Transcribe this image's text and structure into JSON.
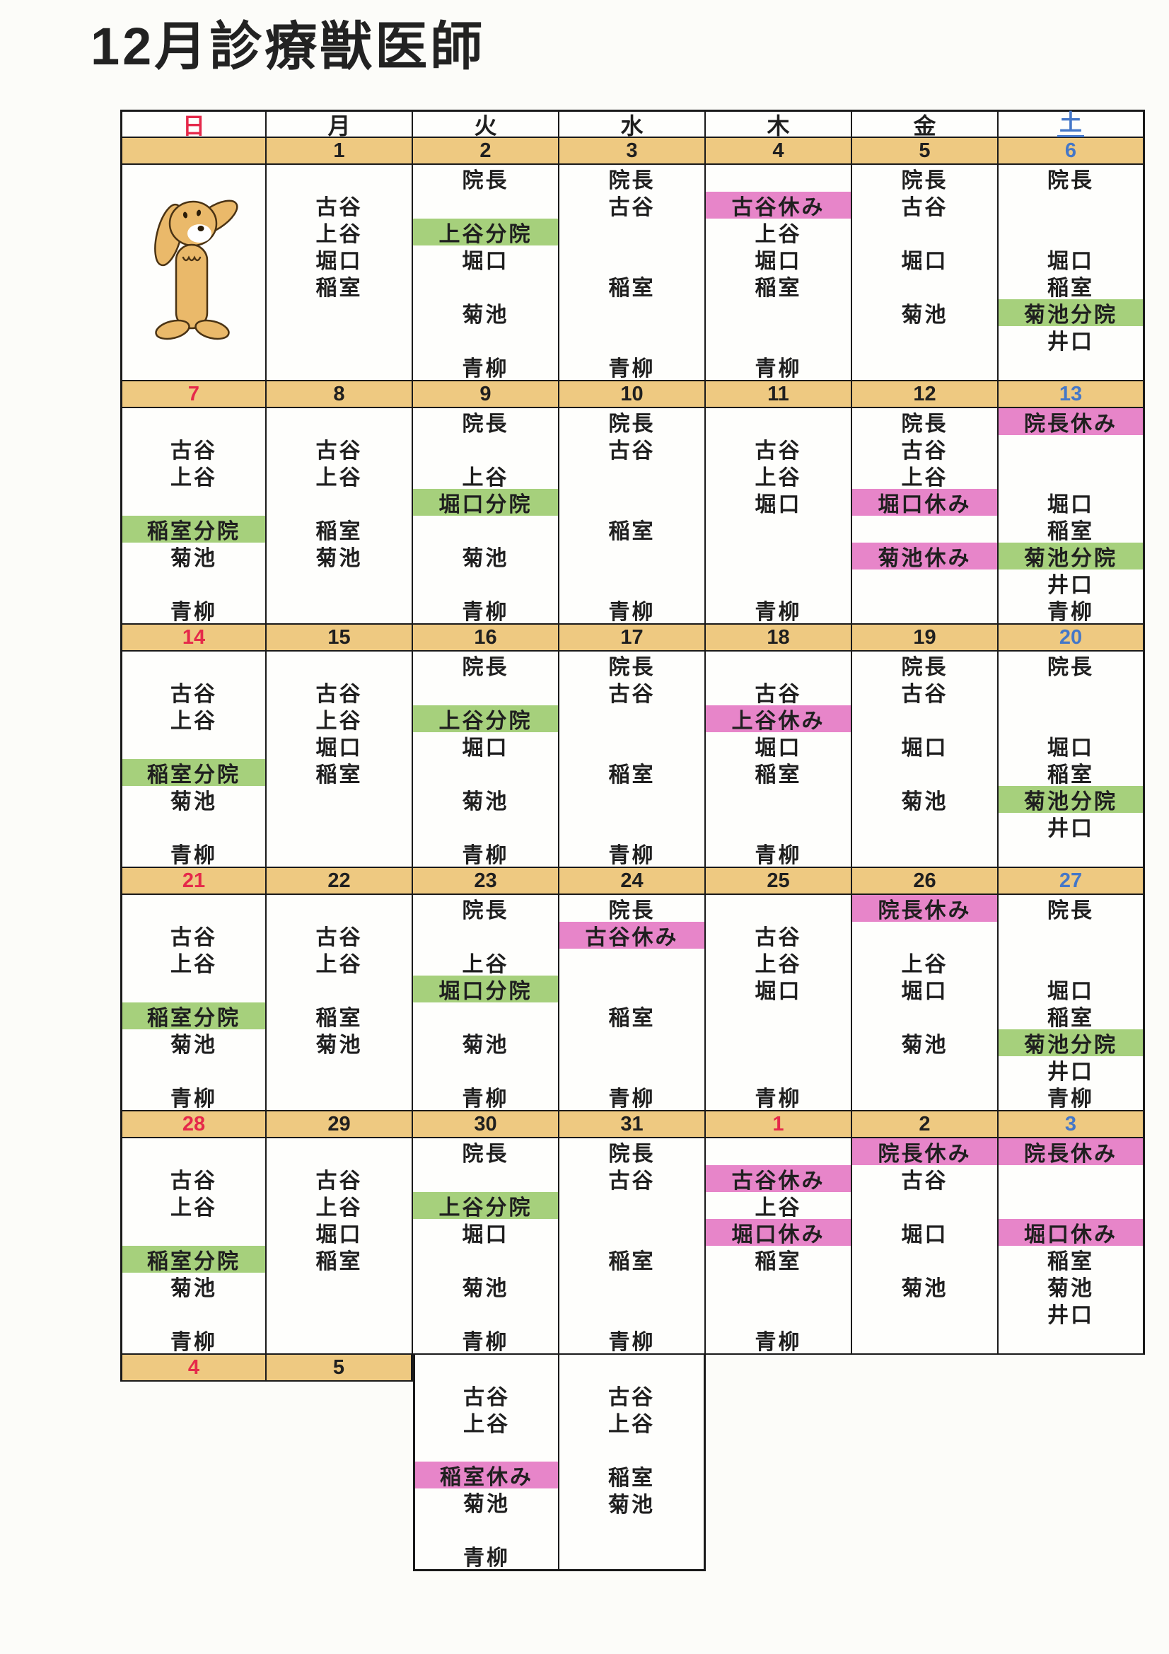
{
  "title": "12月診療獣医師",
  "colors": {
    "date_band": "#eec981",
    "branch_green": "#a6d07c",
    "holiday_pink": "#e785c9",
    "sunday_red": "#e5294a",
    "saturday_blue": "#4477c8",
    "ink": "#1f1f1f",
    "paper": "#fcfcf9"
  },
  "weekday_header": [
    {
      "label": "日",
      "color": "red"
    },
    {
      "label": "月",
      "color": "ink"
    },
    {
      "label": "火",
      "color": "ink"
    },
    {
      "label": "水",
      "color": "ink"
    },
    {
      "label": "木",
      "color": "ink"
    },
    {
      "label": "金",
      "color": "ink"
    },
    {
      "label": "土",
      "color": "blue",
      "underline": true
    }
  ],
  "roster_row_order": [
    "院長",
    "古谷",
    "上谷",
    "堀口",
    "稲室",
    "菊池",
    "井口",
    "青柳"
  ],
  "weeks": [
    {
      "dates": [
        {
          "n": ""
        },
        {
          "n": "1"
        },
        {
          "n": "2"
        },
        {
          "n": "3"
        },
        {
          "n": "4"
        },
        {
          "n": "5"
        },
        {
          "n": "6",
          "c": "blue"
        }
      ],
      "cells": [
        {
          "dog": true,
          "entries": []
        },
        {
          "entries": [
            {
              "line": 2,
              "text": "古谷"
            },
            {
              "line": 3,
              "text": "上谷"
            },
            {
              "line": 4,
              "text": "堀口"
            },
            {
              "line": 5,
              "text": "稲室"
            }
          ]
        },
        {
          "entries": [
            {
              "line": 1,
              "text": "院長"
            },
            {
              "line": 3,
              "text": "上谷分院",
              "hl": "green"
            },
            {
              "line": 4,
              "text": "堀口"
            },
            {
              "line": 6,
              "text": "菊池"
            },
            {
              "line": 8,
              "text": "青柳"
            }
          ]
        },
        {
          "entries": [
            {
              "line": 1,
              "text": "院長"
            },
            {
              "line": 2,
              "text": "古谷"
            },
            {
              "line": 5,
              "text": "稲室"
            },
            {
              "line": 8,
              "text": "青柳"
            }
          ]
        },
        {
          "entries": [
            {
              "line": 2,
              "text": "古谷休み",
              "hl": "pink"
            },
            {
              "line": 3,
              "text": "上谷"
            },
            {
              "line": 4,
              "text": "堀口"
            },
            {
              "line": 5,
              "text": "稲室"
            },
            {
              "line": 8,
              "text": "青柳"
            }
          ]
        },
        {
          "entries": [
            {
              "line": 1,
              "text": "院長"
            },
            {
              "line": 2,
              "text": "古谷"
            },
            {
              "line": 4,
              "text": "堀口"
            },
            {
              "line": 6,
              "text": "菊池"
            }
          ]
        },
        {
          "entries": [
            {
              "line": 1,
              "text": "院長"
            },
            {
              "line": 4,
              "text": "堀口"
            },
            {
              "line": 5,
              "text": "稲室"
            },
            {
              "line": 6,
              "text": "菊池分院",
              "hl": "green"
            },
            {
              "line": 7,
              "text": "井口"
            }
          ]
        }
      ]
    },
    {
      "dates": [
        {
          "n": "7",
          "c": "red"
        },
        {
          "n": "8"
        },
        {
          "n": "9"
        },
        {
          "n": "10"
        },
        {
          "n": "11"
        },
        {
          "n": "12"
        },
        {
          "n": "13",
          "c": "blue"
        }
      ],
      "cells": [
        {
          "entries": [
            {
              "line": 2,
              "text": "古谷"
            },
            {
              "line": 3,
              "text": "上谷"
            },
            {
              "line": 5,
              "text": "稲室分院",
              "hl": "green"
            },
            {
              "line": 6,
              "text": "菊池"
            },
            {
              "line": 8,
              "text": "青柳"
            }
          ]
        },
        {
          "entries": [
            {
              "line": 2,
              "text": "古谷"
            },
            {
              "line": 3,
              "text": "上谷"
            },
            {
              "line": 5,
              "text": "稲室"
            },
            {
              "line": 6,
              "text": "菊池"
            }
          ]
        },
        {
          "entries": [
            {
              "line": 1,
              "text": "院長"
            },
            {
              "line": 3,
              "text": "上谷"
            },
            {
              "line": 4,
              "text": "堀口分院",
              "hl": "green"
            },
            {
              "line": 6,
              "text": "菊池"
            },
            {
              "line": 8,
              "text": "青柳"
            }
          ]
        },
        {
          "entries": [
            {
              "line": 1,
              "text": "院長"
            },
            {
              "line": 2,
              "text": "古谷"
            },
            {
              "line": 5,
              "text": "稲室"
            },
            {
              "line": 8,
              "text": "青柳"
            }
          ]
        },
        {
          "entries": [
            {
              "line": 2,
              "text": "古谷"
            },
            {
              "line": 3,
              "text": "上谷"
            },
            {
              "line": 4,
              "text": "堀口"
            },
            {
              "line": 8,
              "text": "青柳"
            }
          ]
        },
        {
          "entries": [
            {
              "line": 1,
              "text": "院長"
            },
            {
              "line": 2,
              "text": "古谷"
            },
            {
              "line": 3,
              "text": "上谷"
            },
            {
              "line": 4,
              "text": "堀口休み",
              "hl": "pink"
            },
            {
              "line": 6,
              "text": "菊池休み",
              "hl": "pink"
            }
          ]
        },
        {
          "entries": [
            {
              "line": 1,
              "text": "院長休み",
              "hl": "pink"
            },
            {
              "line": 4,
              "text": "堀口"
            },
            {
              "line": 5,
              "text": "稲室"
            },
            {
              "line": 6,
              "text": "菊池分院",
              "hl": "green"
            },
            {
              "line": 7,
              "text": "井口"
            },
            {
              "line": 8,
              "text": "青柳"
            }
          ]
        }
      ]
    },
    {
      "dates": [
        {
          "n": "14",
          "c": "red"
        },
        {
          "n": "15"
        },
        {
          "n": "16"
        },
        {
          "n": "17"
        },
        {
          "n": "18"
        },
        {
          "n": "19"
        },
        {
          "n": "20",
          "c": "blue"
        }
      ],
      "cells": [
        {
          "entries": [
            {
              "line": 2,
              "text": "古谷"
            },
            {
              "line": 3,
              "text": "上谷"
            },
            {
              "line": 5,
              "text": "稲室分院",
              "hl": "green"
            },
            {
              "line": 6,
              "text": "菊池"
            },
            {
              "line": 8,
              "text": "青柳"
            }
          ]
        },
        {
          "entries": [
            {
              "line": 2,
              "text": "古谷"
            },
            {
              "line": 3,
              "text": "上谷"
            },
            {
              "line": 4,
              "text": "堀口"
            },
            {
              "line": 5,
              "text": "稲室"
            }
          ]
        },
        {
          "entries": [
            {
              "line": 1,
              "text": "院長"
            },
            {
              "line": 3,
              "text": "上谷分院",
              "hl": "green"
            },
            {
              "line": 4,
              "text": "堀口"
            },
            {
              "line": 6,
              "text": "菊池"
            },
            {
              "line": 8,
              "text": "青柳"
            }
          ]
        },
        {
          "entries": [
            {
              "line": 1,
              "text": "院長"
            },
            {
              "line": 2,
              "text": "古谷"
            },
            {
              "line": 5,
              "text": "稲室"
            },
            {
              "line": 8,
              "text": "青柳"
            }
          ]
        },
        {
          "entries": [
            {
              "line": 2,
              "text": "古谷"
            },
            {
              "line": 3,
              "text": "上谷休み",
              "hl": "pink"
            },
            {
              "line": 4,
              "text": "堀口"
            },
            {
              "line": 5,
              "text": "稲室"
            },
            {
              "line": 8,
              "text": "青柳"
            }
          ]
        },
        {
          "entries": [
            {
              "line": 1,
              "text": "院長"
            },
            {
              "line": 2,
              "text": "古谷"
            },
            {
              "line": 4,
              "text": "堀口"
            },
            {
              "line": 6,
              "text": "菊池"
            }
          ]
        },
        {
          "entries": [
            {
              "line": 1,
              "text": "院長"
            },
            {
              "line": 4,
              "text": "堀口"
            },
            {
              "line": 5,
              "text": "稲室"
            },
            {
              "line": 6,
              "text": "菊池分院",
              "hl": "green"
            },
            {
              "line": 7,
              "text": "井口"
            }
          ]
        }
      ]
    },
    {
      "dates": [
        {
          "n": "21",
          "c": "red"
        },
        {
          "n": "22"
        },
        {
          "n": "23"
        },
        {
          "n": "24"
        },
        {
          "n": "25"
        },
        {
          "n": "26"
        },
        {
          "n": "27",
          "c": "blue"
        }
      ],
      "cells": [
        {
          "entries": [
            {
              "line": 2,
              "text": "古谷"
            },
            {
              "line": 3,
              "text": "上谷"
            },
            {
              "line": 5,
              "text": "稲室分院",
              "hl": "green"
            },
            {
              "line": 6,
              "text": "菊池"
            },
            {
              "line": 8,
              "text": "青柳"
            }
          ]
        },
        {
          "entries": [
            {
              "line": 2,
              "text": "古谷"
            },
            {
              "line": 3,
              "text": "上谷"
            },
            {
              "line": 5,
              "text": "稲室"
            },
            {
              "line": 6,
              "text": "菊池"
            }
          ]
        },
        {
          "entries": [
            {
              "line": 1,
              "text": "院長"
            },
            {
              "line": 3,
              "text": "上谷"
            },
            {
              "line": 4,
              "text": "堀口分院",
              "hl": "green"
            },
            {
              "line": 6,
              "text": "菊池"
            },
            {
              "line": 8,
              "text": "青柳"
            }
          ]
        },
        {
          "entries": [
            {
              "line": 1,
              "text": "院長"
            },
            {
              "line": 2,
              "text": "古谷休み",
              "hl": "pink"
            },
            {
              "line": 5,
              "text": "稲室"
            },
            {
              "line": 8,
              "text": "青柳"
            }
          ]
        },
        {
          "entries": [
            {
              "line": 2,
              "text": "古谷"
            },
            {
              "line": 3,
              "text": "上谷"
            },
            {
              "line": 4,
              "text": "堀口"
            },
            {
              "line": 8,
              "text": "青柳"
            }
          ]
        },
        {
          "entries": [
            {
              "line": 1,
              "text": "院長休み",
              "hl": "pink"
            },
            {
              "line": 3,
              "text": "上谷"
            },
            {
              "line": 4,
              "text": "堀口"
            },
            {
              "line": 6,
              "text": "菊池"
            }
          ]
        },
        {
          "entries": [
            {
              "line": 1,
              "text": "院長"
            },
            {
              "line": 4,
              "text": "堀口"
            },
            {
              "line": 5,
              "text": "稲室"
            },
            {
              "line": 6,
              "text": "菊池分院",
              "hl": "green"
            },
            {
              "line": 7,
              "text": "井口"
            },
            {
              "line": 8,
              "text": "青柳"
            }
          ]
        }
      ]
    },
    {
      "dates": [
        {
          "n": "28",
          "c": "red"
        },
        {
          "n": "29"
        },
        {
          "n": "30"
        },
        {
          "n": "31"
        },
        {
          "n": "1",
          "c": "red"
        },
        {
          "n": "2"
        },
        {
          "n": "3",
          "c": "blue"
        }
      ],
      "cells": [
        {
          "entries": [
            {
              "line": 2,
              "text": "古谷"
            },
            {
              "line": 3,
              "text": "上谷"
            },
            {
              "line": 5,
              "text": "稲室分院",
              "hl": "green"
            },
            {
              "line": 6,
              "text": "菊池"
            },
            {
              "line": 8,
              "text": "青柳"
            }
          ]
        },
        {
          "entries": [
            {
              "line": 2,
              "text": "古谷"
            },
            {
              "line": 3,
              "text": "上谷"
            },
            {
              "line": 4,
              "text": "堀口"
            },
            {
              "line": 5,
              "text": "稲室"
            }
          ]
        },
        {
          "entries": [
            {
              "line": 1,
              "text": "院長"
            },
            {
              "line": 3,
              "text": "上谷分院",
              "hl": "green"
            },
            {
              "line": 4,
              "text": "堀口"
            },
            {
              "line": 6,
              "text": "菊池"
            },
            {
              "line": 8,
              "text": "青柳"
            }
          ]
        },
        {
          "entries": [
            {
              "line": 1,
              "text": "院長"
            },
            {
              "line": 2,
              "text": "古谷"
            },
            {
              "line": 5,
              "text": "稲室"
            },
            {
              "line": 8,
              "text": "青柳"
            }
          ]
        },
        {
          "entries": [
            {
              "line": 2,
              "text": "古谷休み",
              "hl": "pink"
            },
            {
              "line": 3,
              "text": "上谷"
            },
            {
              "line": 4,
              "text": "堀口休み",
              "hl": "pink"
            },
            {
              "line": 5,
              "text": "稲室"
            },
            {
              "line": 8,
              "text": "青柳"
            }
          ]
        },
        {
          "entries": [
            {
              "line": 1,
              "text": "院長休み",
              "hl": "pink"
            },
            {
              "line": 2,
              "text": "古谷"
            },
            {
              "line": 4,
              "text": "堀口"
            },
            {
              "line": 6,
              "text": "菊池"
            }
          ]
        },
        {
          "entries": [
            {
              "line": 1,
              "text": "院長休み",
              "hl": "pink"
            },
            {
              "line": 4,
              "text": "堀口休み",
              "hl": "pink"
            },
            {
              "line": 5,
              "text": "稲室"
            },
            {
              "line": 6,
              "text": "菊池"
            },
            {
              "line": 7,
              "text": "井口"
            }
          ]
        }
      ]
    },
    {
      "dates": [
        {
          "n": "4",
          "c": "red"
        },
        {
          "n": "5"
        }
      ],
      "cells": [
        {
          "entries": [
            {
              "line": 2,
              "text": "古谷"
            },
            {
              "line": 3,
              "text": "上谷"
            },
            {
              "line": 5,
              "text": "稲室休み",
              "hl": "pink"
            },
            {
              "line": 6,
              "text": "菊池"
            },
            {
              "line": 8,
              "text": "青柳"
            }
          ]
        },
        {
          "entries": [
            {
              "line": 2,
              "text": "古谷"
            },
            {
              "line": 3,
              "text": "上谷"
            },
            {
              "line": 5,
              "text": "稲室"
            },
            {
              "line": 6,
              "text": "菊池"
            }
          ]
        }
      ]
    }
  ]
}
